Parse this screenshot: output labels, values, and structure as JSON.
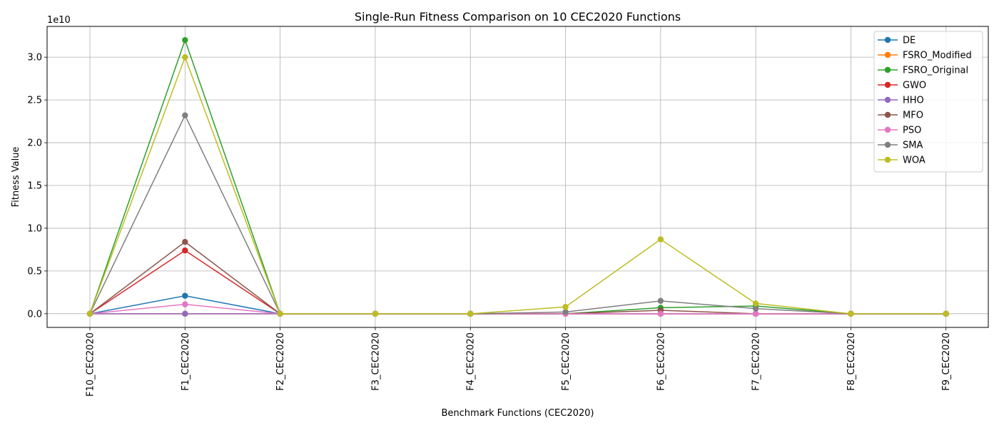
{
  "chart_data": {
    "type": "line",
    "title": "Single-Run Fitness Comparison on 10 CEC2020 Functions",
    "xlabel": "Benchmark Functions (CEC2020)",
    "ylabel": "Fitness Value",
    "y_offset_label": "1e10",
    "y_scale": 10000000000.0,
    "ylim": [
      -0.16,
      3.36
    ],
    "yticks": [
      0.0,
      0.5,
      1.0,
      1.5,
      2.0,
      2.5,
      3.0
    ],
    "ytick_labels": [
      "0.0",
      "0.5",
      "1.0",
      "1.5",
      "2.0",
      "2.5",
      "3.0"
    ],
    "grid": true,
    "legend_position": "top-right",
    "categories": [
      "F10_CEC2020",
      "F1_CEC2020",
      "F2_CEC2020",
      "F3_CEC2020",
      "F4_CEC2020",
      "F5_CEC2020",
      "F6_CEC2020",
      "F7_CEC2020",
      "F8_CEC2020",
      "F9_CEC2020"
    ],
    "series": [
      {
        "name": "DE",
        "color": "#1f77b4",
        "values": [
          0.0,
          0.21,
          0.0,
          0.0,
          0.0,
          0.0,
          0.0,
          0.0,
          0.0,
          0.0
        ]
      },
      {
        "name": "FSRO_Modified",
        "color": "#ff7f0e",
        "values": [
          0.0,
          0.0,
          0.0,
          0.0,
          0.0,
          0.0,
          0.0,
          0.0,
          0.0,
          0.0
        ]
      },
      {
        "name": "FSRO_Original",
        "color": "#2ca02c",
        "values": [
          0.0,
          3.2,
          0.0,
          0.0,
          0.0,
          0.0,
          0.07,
          0.09,
          0.0,
          0.0
        ]
      },
      {
        "name": "GWO",
        "color": "#d62728",
        "values": [
          0.0,
          0.74,
          0.0,
          0.0,
          0.0,
          0.0,
          0.0,
          0.0,
          0.0,
          0.0
        ]
      },
      {
        "name": "HHO",
        "color": "#9467bd",
        "values": [
          0.0,
          0.0,
          0.0,
          0.0,
          0.0,
          0.0,
          0.0,
          0.0,
          0.0,
          0.0
        ]
      },
      {
        "name": "MFO",
        "color": "#8c564b",
        "values": [
          0.0,
          0.84,
          0.0,
          0.0,
          0.0,
          0.0,
          0.04,
          0.0,
          0.0,
          0.0
        ]
      },
      {
        "name": "PSO",
        "color": "#e377c2",
        "values": [
          0.0,
          0.11,
          0.0,
          0.0,
          0.0,
          0.0,
          0.0,
          0.0,
          0.0,
          0.0
        ]
      },
      {
        "name": "SMA",
        "color": "#7f7f7f",
        "values": [
          0.0,
          2.32,
          0.0,
          0.0,
          0.0,
          0.02,
          0.15,
          0.06,
          0.0,
          0.0
        ]
      },
      {
        "name": "WOA",
        "color": "#bcbd22",
        "values": [
          0.0,
          3.0,
          0.0,
          0.0,
          0.0,
          0.08,
          0.87,
          0.12,
          0.0,
          0.0
        ]
      }
    ]
  }
}
